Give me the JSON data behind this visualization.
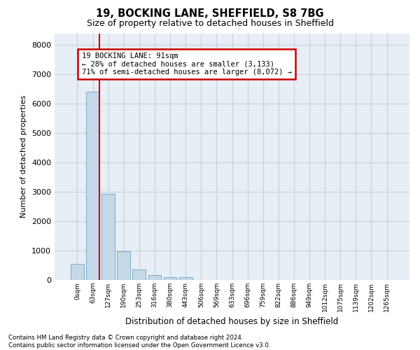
{
  "title_line1": "19, BOCKING LANE, SHEFFIELD, S8 7BG",
  "title_line2": "Size of property relative to detached houses in Sheffield",
  "xlabel": "Distribution of detached houses by size in Sheffield",
  "ylabel": "Number of detached properties",
  "bar_labels": [
    "0sqm",
    "63sqm",
    "127sqm",
    "190sqm",
    "253sqm",
    "316sqm",
    "380sqm",
    "443sqm",
    "506sqm",
    "569sqm",
    "633sqm",
    "696sqm",
    "759sqm",
    "822sqm",
    "886sqm",
    "949sqm",
    "1012sqm",
    "1075sqm",
    "1139sqm",
    "1202sqm",
    "1265sqm"
  ],
  "bar_values": [
    560,
    6420,
    2920,
    980,
    360,
    175,
    105,
    90,
    0,
    0,
    0,
    0,
    0,
    0,
    0,
    0,
    0,
    0,
    0,
    0,
    0
  ],
  "bar_color": "#c5d8e8",
  "bar_edge_color": "#7aaec8",
  "property_line_color": "#cc0000",
  "annotation_text": "19 BOCKING LANE: 91sqm\n← 28% of detached houses are smaller (3,133)\n71% of semi-detached houses are larger (8,072) →",
  "annotation_box_color": "#ffffff",
  "annotation_box_edge_color": "#cc0000",
  "ylim": [
    0,
    8400
  ],
  "yticks": [
    0,
    1000,
    2000,
    3000,
    4000,
    5000,
    6000,
    7000,
    8000
  ],
  "grid_color": "#c8d0dc",
  "background_color": "#e8eef5",
  "footer_line1": "Contains HM Land Registry data © Crown copyright and database right 2024.",
  "footer_line2": "Contains public sector information licensed under the Open Government Licence v3.0."
}
